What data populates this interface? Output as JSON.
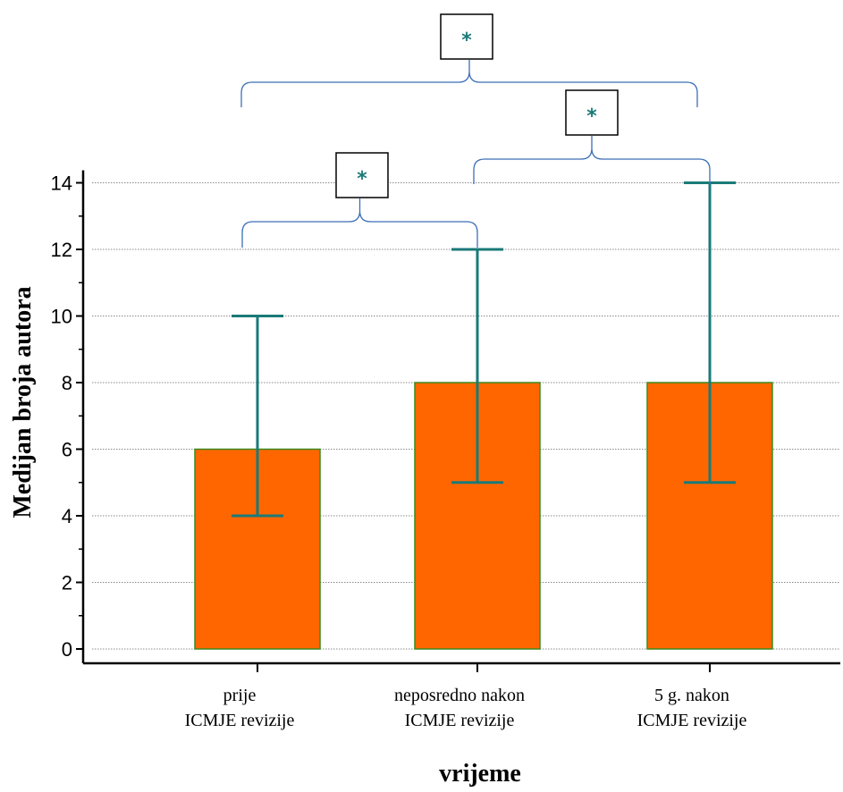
{
  "chart_data": {
    "type": "bar",
    "xlabel": "vrijeme",
    "ylabel": "Medijan broja autora",
    "ylim": [
      0,
      14
    ],
    "yticks": [
      0,
      2,
      4,
      6,
      8,
      10,
      12,
      14
    ],
    "grid": true,
    "categories": [
      [
        "prije",
        "ICMJE revizije"
      ],
      [
        "neposredno nakon",
        "ICMJE revizije"
      ],
      [
        "5 g. nakon",
        "ICMJE revizije"
      ]
    ],
    "values": [
      6,
      8,
      8
    ],
    "error_low": [
      4,
      5,
      5
    ],
    "error_high": [
      10,
      12,
      14
    ],
    "significance": [
      {
        "from": 0,
        "to": 1,
        "label": "*"
      },
      {
        "from": 1,
        "to": 2,
        "label": "*"
      },
      {
        "from": 0,
        "to": 2,
        "label": "*"
      }
    ],
    "colors": {
      "bar_fill": "#ff6600",
      "bar_stroke": "#3c8a1e",
      "error_bar": "#1a7a78",
      "bracket": "#3b6fb8",
      "sig_text": "#1a7a78",
      "grid": "#666666"
    }
  }
}
